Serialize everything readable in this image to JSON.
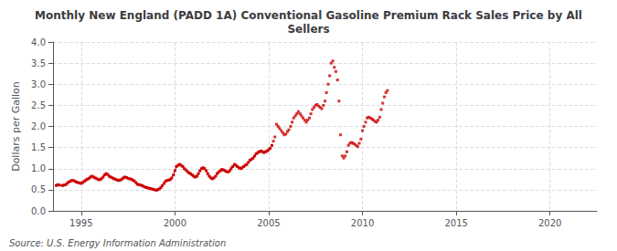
{
  "chart_data": {
    "type": "line",
    "title": "Monthly New England (PADD 1A) Conventional Gasoline Premium Rack Sales Price by All\nSellers",
    "ylabel": "Dollars per Gallon",
    "source": "Source: U.S. Energy Information Administration",
    "xlim": [
      1993.5,
      2022.5
    ],
    "xticks": [
      1995,
      2000,
      2005,
      2010,
      2015,
      2020
    ],
    "ylim": [
      0.0,
      4.0
    ],
    "yticks": [
      {
        "value": 0.0,
        "label": "0.0"
      },
      0.5,
      {
        "value": 1.0,
        "label": "1.0"
      },
      1.5,
      {
        "value": 2.0,
        "label": "2.0"
      },
      2.5,
      {
        "value": 3.0,
        "label": "3.0"
      },
      3.5,
      {
        "value": 4.0,
        "label": "4.0"
      }
    ],
    "grid": true,
    "series": [
      {
        "type": "line",
        "color": "#cc0000",
        "marker": "square",
        "x": [
          1993.67,
          1993.75,
          1993.83,
          1994.0,
          1994.08,
          1994.17,
          1994.25,
          1994.33,
          1994.42,
          1994.5,
          1994.58,
          1994.67,
          1994.75,
          1994.83,
          1994.92,
          1995.0,
          1995.08,
          1995.17,
          1995.25,
          1995.33,
          1995.42,
          1995.5,
          1995.58,
          1995.67,
          1995.75,
          1995.83,
          1995.92,
          1996.0,
          1996.08,
          1996.17,
          1996.25,
          1996.33,
          1996.42,
          1996.5,
          1996.58,
          1996.67,
          1996.75,
          1996.83,
          1996.92,
          1997.0,
          1997.08,
          1997.17,
          1997.25,
          1997.33,
          1997.42,
          1997.5,
          1997.58,
          1997.67,
          1997.75,
          1997.83,
          1997.92,
          1998.0,
          1998.08,
          1998.17,
          1998.25,
          1998.33,
          1998.42,
          1998.5,
          1998.58,
          1998.67,
          1998.75,
          1998.83,
          1998.92,
          1999.0,
          1999.08,
          1999.17,
          1999.25,
          1999.33,
          1999.42,
          1999.5,
          1999.58,
          1999.67,
          1999.75,
          1999.83,
          1999.92,
          2000.0,
          2000.08,
          2000.17,
          2000.25,
          2000.33,
          2000.42,
          2000.5,
          2000.58,
          2000.67,
          2000.75,
          2000.83,
          2000.92,
          2001.0,
          2001.08,
          2001.17,
          2001.25,
          2001.33,
          2001.42,
          2001.5,
          2001.58,
          2001.67,
          2001.75,
          2001.83,
          2001.92,
          2002.0,
          2002.08,
          2002.17,
          2002.25,
          2002.33,
          2002.42,
          2002.5,
          2002.58,
          2002.67,
          2002.75,
          2002.83,
          2002.92,
          2003.0,
          2003.08,
          2003.17,
          2003.25,
          2003.33,
          2003.42,
          2003.5,
          2003.58,
          2003.67,
          2003.75,
          2003.83,
          2003.92,
          2004.0,
          2004.08,
          2004.17,
          2004.25,
          2004.33,
          2004.42,
          2004.5,
          2004.58,
          2004.67,
          2004.75,
          2004.83,
          2004.92,
          2005.0,
          2005.08,
          2005.17
        ],
        "values": [
          0.6,
          0.62,
          0.61,
          0.6,
          0.61,
          0.62,
          0.65,
          0.68,
          0.7,
          0.72,
          0.72,
          0.7,
          0.68,
          0.67,
          0.66,
          0.65,
          0.67,
          0.7,
          0.73,
          0.75,
          0.77,
          0.8,
          0.82,
          0.8,
          0.78,
          0.76,
          0.74,
          0.74,
          0.76,
          0.8,
          0.85,
          0.88,
          0.86,
          0.82,
          0.8,
          0.78,
          0.76,
          0.75,
          0.73,
          0.72,
          0.73,
          0.75,
          0.78,
          0.8,
          0.79,
          0.77,
          0.76,
          0.75,
          0.73,
          0.71,
          0.67,
          0.63,
          0.62,
          0.61,
          0.6,
          0.58,
          0.56,
          0.55,
          0.54,
          0.53,
          0.52,
          0.51,
          0.5,
          0.49,
          0.5,
          0.52,
          0.55,
          0.6,
          0.65,
          0.7,
          0.72,
          0.73,
          0.74,
          0.78,
          0.85,
          0.95,
          1.05,
          1.08,
          1.1,
          1.08,
          1.05,
          1.0,
          0.97,
          0.93,
          0.9,
          0.88,
          0.85,
          0.82,
          0.8,
          0.82,
          0.88,
          0.95,
          1.0,
          1.02,
          1.0,
          0.95,
          0.88,
          0.82,
          0.78,
          0.76,
          0.78,
          0.82,
          0.88,
          0.92,
          0.95,
          0.98,
          0.97,
          0.95,
          0.93,
          0.92,
          0.95,
          1.0,
          1.05,
          1.1,
          1.08,
          1.05,
          1.02,
          1.0,
          1.02,
          1.05,
          1.08,
          1.1,
          1.15,
          1.2,
          1.22,
          1.25,
          1.3,
          1.35,
          1.38,
          1.4,
          1.42,
          1.4,
          1.38,
          1.4,
          1.42,
          1.45,
          1.48,
          1.55
        ]
      },
      {
        "type": "scatter",
        "color": "#cc0000",
        "marker": "square",
        "x": [
          2005.25,
          2005.33,
          2005.42,
          2005.5,
          2005.58,
          2005.67,
          2005.75,
          2005.83,
          2005.92,
          2006.0,
          2006.08,
          2006.17,
          2006.25,
          2006.33,
          2006.42,
          2006.5,
          2006.58,
          2006.67,
          2006.75,
          2006.83,
          2006.92,
          2007.0,
          2007.08,
          2007.17,
          2007.25,
          2007.33,
          2007.42,
          2007.5,
          2007.58,
          2007.67,
          2007.75,
          2007.83,
          2007.92,
          2008.0,
          2008.08,
          2008.17,
          2008.25,
          2008.33,
          2008.42,
          2008.5,
          2008.58,
          2008.67,
          2008.75,
          2008.83,
          2008.92,
          2009.0,
          2009.08,
          2009.17,
          2009.25,
          2009.33,
          2009.42,
          2009.5,
          2009.58,
          2009.67,
          2009.75,
          2009.83,
          2009.92,
          2010.0,
          2010.08,
          2010.17,
          2010.25,
          2010.33,
          2010.42,
          2010.5,
          2010.58,
          2010.67,
          2010.75,
          2010.83,
          2010.92,
          2011.0,
          2011.08,
          2011.17,
          2011.25,
          2011.33
        ],
        "values": [
          1.65,
          1.75,
          2.05,
          2.0,
          1.95,
          1.9,
          1.85,
          1.8,
          1.82,
          1.88,
          1.92,
          2.0,
          2.1,
          2.2,
          2.25,
          2.3,
          2.35,
          2.3,
          2.25,
          2.2,
          2.15,
          2.1,
          2.15,
          2.2,
          2.3,
          2.4,
          2.45,
          2.5,
          2.52,
          2.48,
          2.45,
          2.42,
          2.5,
          2.6,
          2.8,
          3.0,
          3.2,
          3.5,
          3.55,
          3.4,
          3.3,
          3.1,
          2.6,
          1.8,
          1.3,
          1.25,
          1.3,
          1.4,
          1.55,
          1.6,
          1.62,
          1.6,
          1.58,
          1.55,
          1.52,
          1.6,
          1.7,
          1.9,
          2.0,
          2.1,
          2.2,
          2.22,
          2.2,
          2.18,
          2.15,
          2.12,
          2.1,
          2.15,
          2.22,
          2.4,
          2.55,
          2.7,
          2.8,
          2.85
        ]
      }
    ]
  }
}
